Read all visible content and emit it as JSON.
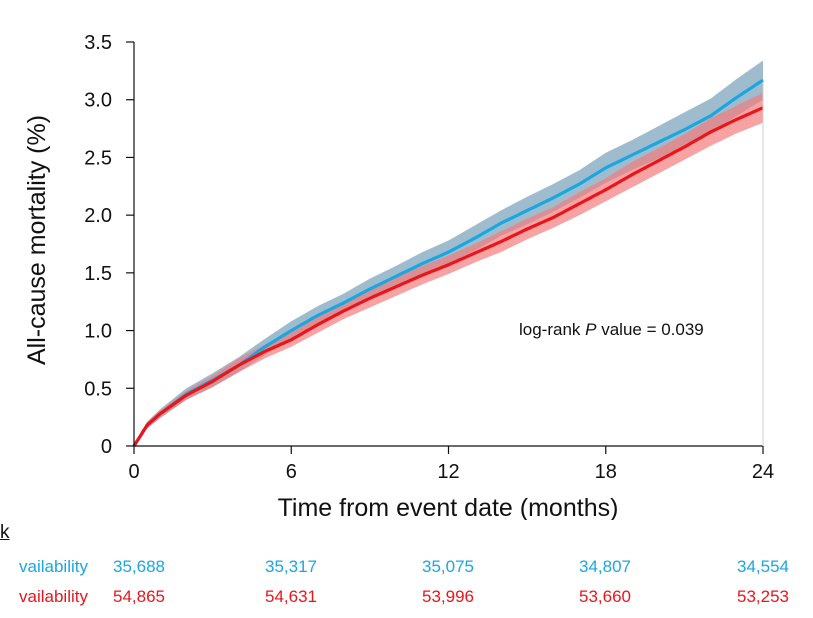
{
  "chart_data": {
    "type": "line",
    "title": "",
    "xlabel": "Time from event date (months)",
    "ylabel": "All-cause mortality (%)",
    "xlim": [
      0,
      24
    ],
    "ylim": [
      0,
      3.5
    ],
    "x_ticks": [
      "0",
      "6",
      "12",
      "18",
      "24"
    ],
    "y_ticks": [
      "0",
      "0.5",
      "1.0",
      "1.5",
      "2.0",
      "2.5",
      "3.0",
      "3.5"
    ],
    "x_tick_values": [
      0,
      6,
      12,
      18,
      24
    ],
    "y_tick_values": [
      0,
      0.5,
      1.0,
      1.5,
      2.0,
      2.5,
      3.0,
      3.5
    ],
    "grid": false,
    "annotation": {
      "prefix": "log-rank ",
      "italic": "P",
      "suffix": " value = 0.039"
    },
    "series": [
      {
        "color": "#1aa7e0",
        "band_color": "#7fa6bf",
        "x": [
          0,
          0.5,
          1,
          2,
          3,
          4,
          5,
          6,
          7,
          8,
          9,
          10,
          11,
          12,
          13,
          14,
          15,
          16,
          17,
          18,
          19,
          20,
          21,
          22,
          23,
          24
        ],
        "y": [
          0,
          0.18,
          0.28,
          0.45,
          0.57,
          0.7,
          0.86,
          1.0,
          1.13,
          1.24,
          1.36,
          1.47,
          1.58,
          1.68,
          1.8,
          1.93,
          2.04,
          2.15,
          2.27,
          2.41,
          2.52,
          2.63,
          2.74,
          2.86,
          3.02,
          3.17
        ],
        "ci_low": [
          0,
          0.15,
          0.24,
          0.4,
          0.51,
          0.64,
          0.79,
          0.92,
          1.05,
          1.16,
          1.27,
          1.38,
          1.48,
          1.58,
          1.69,
          1.82,
          1.92,
          2.03,
          2.15,
          2.28,
          2.39,
          2.49,
          2.59,
          2.71,
          2.86,
          3.0
        ],
        "ci_high": [
          0,
          0.21,
          0.32,
          0.5,
          0.63,
          0.77,
          0.93,
          1.08,
          1.21,
          1.32,
          1.45,
          1.56,
          1.68,
          1.78,
          1.91,
          2.04,
          2.16,
          2.27,
          2.39,
          2.54,
          2.65,
          2.77,
          2.89,
          3.01,
          3.18,
          3.34
        ]
      },
      {
        "color": "#e8161b",
        "band_color": "#f47c7c",
        "x": [
          0,
          0.5,
          1,
          2,
          3,
          4,
          5,
          6,
          7,
          8,
          9,
          10,
          11,
          12,
          13,
          14,
          15,
          16,
          17,
          18,
          19,
          20,
          21,
          22,
          23,
          24
        ],
        "y": [
          0,
          0.18,
          0.28,
          0.44,
          0.56,
          0.7,
          0.82,
          0.92,
          1.05,
          1.17,
          1.28,
          1.38,
          1.48,
          1.57,
          1.67,
          1.77,
          1.88,
          1.98,
          2.1,
          2.22,
          2.35,
          2.47,
          2.59,
          2.72,
          2.83,
          2.93
        ],
        "ci_low": [
          0,
          0.15,
          0.25,
          0.4,
          0.51,
          0.64,
          0.76,
          0.86,
          0.98,
          1.1,
          1.2,
          1.3,
          1.4,
          1.49,
          1.59,
          1.68,
          1.79,
          1.89,
          2.0,
          2.12,
          2.24,
          2.36,
          2.48,
          2.6,
          2.71,
          2.8
        ],
        "ci_high": [
          0,
          0.21,
          0.31,
          0.48,
          0.61,
          0.76,
          0.88,
          0.98,
          1.12,
          1.24,
          1.36,
          1.46,
          1.56,
          1.65,
          1.75,
          1.86,
          1.97,
          2.07,
          2.2,
          2.32,
          2.46,
          2.58,
          2.7,
          2.84,
          2.95,
          3.06
        ]
      }
    ]
  },
  "risk_table": {
    "header": "risk",
    "rows": [
      {
        "label": "vailability",
        "color": "#1aa7e0",
        "values": [
          "35,688",
          "35,317",
          "35,075",
          "34,807",
          "34,554"
        ]
      },
      {
        "label": "vailability",
        "color": "#e8161b",
        "values": [
          "54,865",
          "54,631",
          "53,996",
          "53,660",
          "53,253"
        ]
      }
    ]
  }
}
